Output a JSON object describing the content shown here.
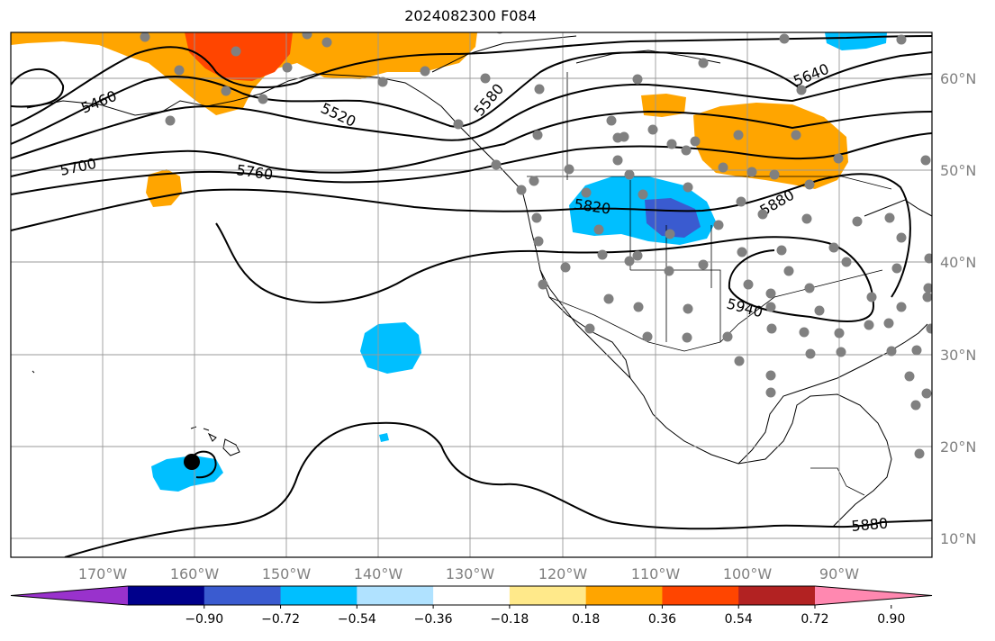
{
  "title": "2024082300 F084",
  "longitude_labels": [
    "170°W",
    "160°W",
    "150°W",
    "140°W",
    "130°W",
    "120°W",
    "110°W",
    "100°W",
    "90°W"
  ],
  "latitude_labels": [
    "60°N",
    "50°N",
    "40°N",
    "30°N",
    "20°N",
    "10°N"
  ],
  "contour_labels": [
    "5460",
    "5520",
    "5580",
    "5640",
    "5700",
    "5760",
    "5820",
    "5880",
    "5940",
    "5880"
  ],
  "colorbar": {
    "ticks": [
      "−0.90",
      "−0.72",
      "−0.54",
      "−0.36",
      "−0.18",
      "0.18",
      "0.36",
      "0.54",
      "0.72",
      "0.90"
    ],
    "colors": [
      "#9932cc",
      "#00008b",
      "#3a5bd0",
      "#00bfff",
      "#b0e2ff",
      "#ffffff",
      "#ffe98a",
      "#ffa500",
      "#ff4500",
      "#b22222",
      "#ff88b0"
    ]
  },
  "colors": {
    "positive_shade": "#ffa500",
    "strong_positive_shade": "#ff4500",
    "negative_shade": "#00bfff",
    "strong_negative_shade": "#3a5bd0",
    "station_dot": "#808080",
    "grid": "#999999"
  }
}
